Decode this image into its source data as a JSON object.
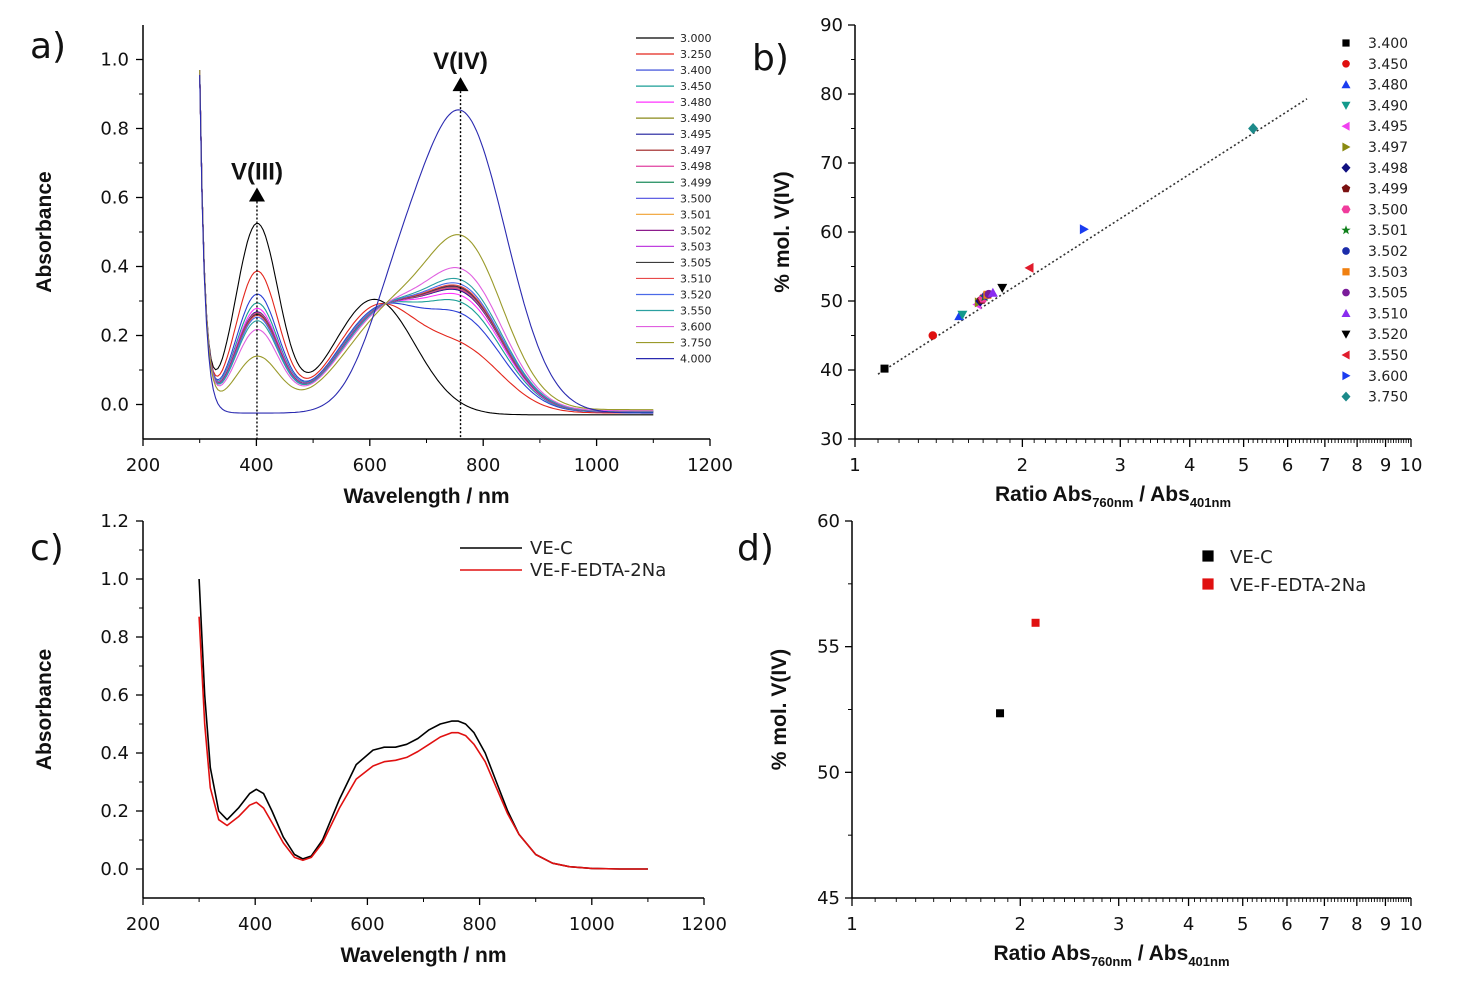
{
  "chart_data": [
    {
      "panel": "a)",
      "type": "line",
      "xlabel": "Wavelength / nm",
      "ylabel": "Absorbance",
      "xlim": [
        200,
        1200
      ],
      "ylim": [
        -0.1,
        1.1
      ],
      "xticks": [
        "200",
        "400",
        "600",
        "800",
        "1000",
        "1200"
      ],
      "yticks": [
        "0.0",
        "0.2",
        "0.4",
        "0.6",
        "0.8",
        "1.0"
      ],
      "annotations": [
        {
          "text": "V(III)",
          "x": 401
        },
        {
          "text": "V(IV)",
          "x": 760
        }
      ],
      "series": [
        {
          "name": "3.000",
          "color": "#000000",
          "f": 0.0
        },
        {
          "name": "3.250",
          "color": "#e3261c",
          "f": 0.27
        },
        {
          "name": "3.400",
          "color": "#2b3fd6",
          "f": 0.4
        },
        {
          "name": "3.450",
          "color": "#1a9e96",
          "f": 0.45
        },
        {
          "name": "3.480",
          "color": "#ff33ff",
          "f": 0.48
        },
        {
          "name": "3.490",
          "color": "#8a8a1a",
          "f": 0.5
        },
        {
          "name": "3.495",
          "color": "#1c1c9c",
          "f": 0.5
        },
        {
          "name": "3.497",
          "color": "#9c1c1c",
          "f": 0.505
        },
        {
          "name": "3.498",
          "color": "#e040a0",
          "f": 0.505
        },
        {
          "name": "3.499",
          "color": "#1c8c5c",
          "f": 0.51
        },
        {
          "name": "3.500",
          "color": "#4c4ce0",
          "f": 0.51
        },
        {
          "name": "3.501",
          "color": "#f0a030",
          "f": 0.51
        },
        {
          "name": "3.502",
          "color": "#8c1c8c",
          "f": 0.512
        },
        {
          "name": "3.503",
          "color": "#c040e0",
          "f": 0.515
        },
        {
          "name": "3.505",
          "color": "#3c3c3c",
          "f": 0.515
        },
        {
          "name": "3.510",
          "color": "#e84a4a",
          "f": 0.52
        },
        {
          "name": "3.520",
          "color": "#4a6ae8",
          "f": 0.53
        },
        {
          "name": "3.550",
          "color": "#2aa0a0",
          "f": 0.55
        },
        {
          "name": "3.600",
          "color": "#e060e0",
          "f": 0.6
        },
        {
          "name": "3.750",
          "color": "#9a9a2a",
          "f": 0.75
        },
        {
          "name": "4.000",
          "color": "#2a2ab0",
          "f": 1.0
        }
      ]
    },
    {
      "panel": "b)",
      "type": "scatter",
      "xscale": "log",
      "xlabel": "Ratio Abs",
      "xlabel_sub1": "760nm",
      "xlabel_mid": " / Abs",
      "xlabel_sub2": "401nm",
      "ylabel": "% mol. V(IV)",
      "xlim": [
        1,
        10
      ],
      "ylim": [
        30,
        90
      ],
      "xticks": [
        "1",
        "2",
        "3",
        "4",
        "5",
        "6",
        "7",
        "8",
        "9",
        "10"
      ],
      "yticks": [
        "30",
        "40",
        "50",
        "60",
        "70",
        "80",
        "90"
      ],
      "fit_line": {
        "x": [
          1.1,
          6.5
        ],
        "y": [
          39.4,
          79.3
        ],
        "style": "dotted"
      },
      "series": [
        {
          "name": "3.400",
          "x": 1.13,
          "y": 40.2,
          "marker": "square",
          "color": "#000000"
        },
        {
          "name": "3.450",
          "x": 1.38,
          "y": 45.0,
          "marker": "circle",
          "color": "#e01010"
        },
        {
          "name": "3.480",
          "x": 1.54,
          "y": 47.8,
          "marker": "triangle-up",
          "color": "#1a3cf0"
        },
        {
          "name": "3.490",
          "x": 1.56,
          "y": 48.0,
          "marker": "triangle-down",
          "color": "#129a8c"
        },
        {
          "name": "3.495",
          "x": 1.66,
          "y": 49.5,
          "marker": "triangle-left",
          "color": "#f040f0"
        },
        {
          "name": "3.497",
          "x": 1.67,
          "y": 49.8,
          "marker": "triangle-right",
          "color": "#8a8a10"
        },
        {
          "name": "3.498",
          "x": 1.68,
          "y": 50.0,
          "marker": "diamond",
          "color": "#101080"
        },
        {
          "name": "3.499",
          "x": 1.69,
          "y": 50.2,
          "marker": "pentagon",
          "color": "#7a1010"
        },
        {
          "name": "3.500",
          "x": 1.7,
          "y": 50.4,
          "marker": "hexagon",
          "color": "#f03c9c"
        },
        {
          "name": "3.501",
          "x": 1.71,
          "y": 50.6,
          "marker": "star",
          "color": "#10801c"
        },
        {
          "name": "3.502",
          "x": 1.72,
          "y": 50.8,
          "marker": "circle",
          "color": "#1c2caa"
        },
        {
          "name": "3.503",
          "x": 1.73,
          "y": 50.9,
          "marker": "square",
          "color": "#f08010"
        },
        {
          "name": "3.505",
          "x": 1.74,
          "y": 51.0,
          "marker": "circle",
          "color": "#7a1c9a"
        },
        {
          "name": "3.510",
          "x": 1.77,
          "y": 51.2,
          "marker": "triangle-up",
          "color": "#8a2cf0"
        },
        {
          "name": "3.520",
          "x": 1.84,
          "y": 51.9,
          "marker": "triangle-down",
          "color": "#000000"
        },
        {
          "name": "3.550",
          "x": 2.06,
          "y": 54.8,
          "marker": "triangle-left",
          "color": "#e01c2c"
        },
        {
          "name": "3.600",
          "x": 2.58,
          "y": 60.4,
          "marker": "triangle-right",
          "color": "#1a3cf0"
        },
        {
          "name": "3.750",
          "x": 5.2,
          "y": 75.0,
          "marker": "diamond",
          "color": "#1c8a8a"
        }
      ]
    },
    {
      "panel": "c)",
      "type": "line",
      "xlabel": "Wavelength / nm",
      "ylabel": "Absorbance",
      "xlim": [
        200,
        1200
      ],
      "ylim": [
        -0.1,
        1.2
      ],
      "xticks": [
        "200",
        "400",
        "600",
        "800",
        "1000",
        "1200"
      ],
      "yticks": [
        "0.0",
        "0.2",
        "0.4",
        "0.6",
        "0.8",
        "1.0",
        "1.2"
      ],
      "series": [
        {
          "name": "VE-C",
          "color": "#000000",
          "x": [
            300,
            310,
            320,
            335,
            350,
            370,
            390,
            402,
            415,
            430,
            450,
            470,
            485,
            500,
            520,
            550,
            580,
            610,
            630,
            650,
            670,
            690,
            710,
            730,
            750,
            762,
            775,
            790,
            810,
            830,
            850,
            870,
            900,
            930,
            960,
            1000,
            1050,
            1100
          ],
          "y": [
            1.0,
            0.6,
            0.35,
            0.2,
            0.17,
            0.21,
            0.26,
            0.275,
            0.26,
            0.2,
            0.11,
            0.05,
            0.035,
            0.045,
            0.1,
            0.24,
            0.36,
            0.41,
            0.42,
            0.42,
            0.43,
            0.45,
            0.48,
            0.5,
            0.51,
            0.51,
            0.5,
            0.47,
            0.4,
            0.3,
            0.2,
            0.12,
            0.05,
            0.02,
            0.008,
            0.002,
            0.0,
            0.0
          ]
        },
        {
          "name": "VE-F-EDTA-2Na",
          "color": "#e01010",
          "x": [
            300,
            310,
            320,
            335,
            350,
            370,
            390,
            402,
            415,
            430,
            450,
            470,
            485,
            500,
            520,
            550,
            580,
            610,
            630,
            650,
            670,
            690,
            710,
            730,
            750,
            762,
            775,
            790,
            810,
            830,
            850,
            870,
            900,
            930,
            960,
            1000,
            1050,
            1100
          ],
          "y": [
            0.87,
            0.5,
            0.28,
            0.17,
            0.15,
            0.18,
            0.22,
            0.23,
            0.21,
            0.16,
            0.09,
            0.04,
            0.03,
            0.04,
            0.09,
            0.21,
            0.31,
            0.355,
            0.37,
            0.375,
            0.385,
            0.405,
            0.43,
            0.455,
            0.47,
            0.47,
            0.46,
            0.43,
            0.37,
            0.28,
            0.19,
            0.12,
            0.05,
            0.02,
            0.008,
            0.002,
            0.0,
            0.0
          ]
        }
      ]
    },
    {
      "panel": "d)",
      "type": "scatter",
      "xscale": "log",
      "xlabel": "Ratio Abs",
      "xlabel_sub1": "760nm",
      "xlabel_mid": " / Abs",
      "xlabel_sub2": "401nm",
      "ylabel": "% mol. V(IV)",
      "xlim": [
        1,
        10
      ],
      "ylim": [
        45,
        60
      ],
      "xticks": [
        "1",
        "2",
        "3",
        "4",
        "5",
        "6",
        "7",
        "8",
        "9",
        "10"
      ],
      "yticks": [
        "45",
        "50",
        "55",
        "60"
      ],
      "series": [
        {
          "name": "VE-C",
          "x": 1.84,
          "y": 52.35,
          "marker": "square",
          "color": "#000000"
        },
        {
          "name": "VE-F-EDTA-2Na",
          "x": 2.13,
          "y": 55.95,
          "marker": "square",
          "color": "#e01010"
        }
      ]
    }
  ]
}
